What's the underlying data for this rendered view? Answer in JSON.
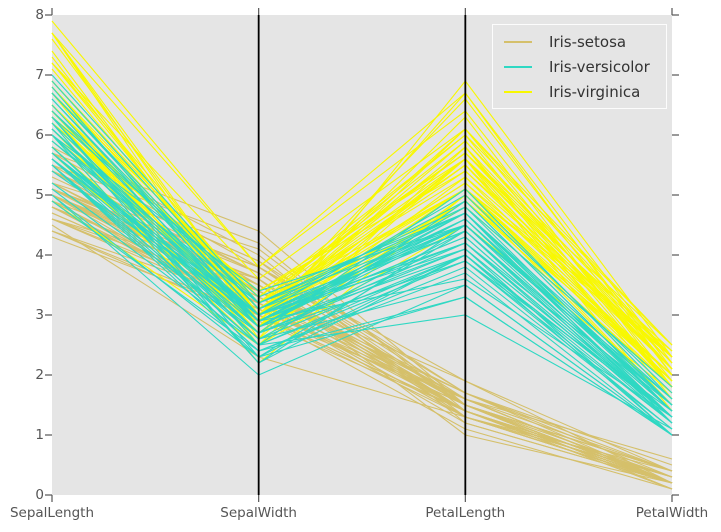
{
  "chart_data": {
    "type": "line",
    "subtype": "parallel-coordinates",
    "title": "",
    "dataset": "Iris",
    "categories": [
      "SepalLength",
      "SepalWidth",
      "PetalLength",
      "PetalWidth"
    ],
    "ylim": [
      0,
      8
    ],
    "yticks": [
      "0",
      "1",
      "2",
      "3",
      "4",
      "5",
      "6",
      "7",
      "8"
    ],
    "grid": false,
    "legend_position": "upper right",
    "axvlines_visible_at": [
      "SepalWidth",
      "PetalLength"
    ],
    "draw_order": [
      "Iris-setosa",
      "Iris-virginica",
      "Iris-versicolor"
    ],
    "colors": {
      "figure_background": "#ffffff",
      "plot_background": "#e5e5e5",
      "axis_vline": "#000000",
      "tick_mark": "#555555",
      "tick_text": "#555555",
      "legend_background": "#e5e5e5",
      "legend_border": "#fcfcfc",
      "legend_text": "#333333"
    },
    "series": [
      {
        "name": "Iris-setosa",
        "color": "#d5c06b",
        "rows": [
          [
            5.1,
            3.5,
            1.4,
            0.2
          ],
          [
            4.9,
            3.0,
            1.4,
            0.2
          ],
          [
            4.7,
            3.2,
            1.3,
            0.2
          ],
          [
            4.6,
            3.1,
            1.5,
            0.2
          ],
          [
            5.0,
            3.6,
            1.4,
            0.2
          ],
          [
            5.4,
            3.9,
            1.7,
            0.4
          ],
          [
            4.6,
            3.4,
            1.4,
            0.3
          ],
          [
            5.0,
            3.4,
            1.5,
            0.2
          ],
          [
            4.4,
            2.9,
            1.4,
            0.2
          ],
          [
            4.9,
            3.1,
            1.5,
            0.1
          ],
          [
            5.4,
            3.7,
            1.5,
            0.2
          ],
          [
            4.8,
            3.4,
            1.6,
            0.2
          ],
          [
            4.8,
            3.0,
            1.4,
            0.1
          ],
          [
            4.3,
            3.0,
            1.1,
            0.1
          ],
          [
            5.8,
            4.0,
            1.2,
            0.2
          ],
          [
            5.7,
            4.4,
            1.5,
            0.4
          ],
          [
            5.4,
            3.9,
            1.3,
            0.4
          ],
          [
            5.1,
            3.5,
            1.4,
            0.3
          ],
          [
            5.7,
            3.8,
            1.7,
            0.3
          ],
          [
            5.1,
            3.8,
            1.5,
            0.3
          ],
          [
            5.4,
            3.4,
            1.7,
            0.2
          ],
          [
            5.1,
            3.7,
            1.5,
            0.4
          ],
          [
            4.6,
            3.6,
            1.0,
            0.2
          ],
          [
            5.1,
            3.3,
            1.7,
            0.5
          ],
          [
            4.8,
            3.4,
            1.9,
            0.2
          ],
          [
            5.0,
            3.0,
            1.6,
            0.2
          ],
          [
            5.0,
            3.4,
            1.6,
            0.4
          ],
          [
            5.2,
            3.5,
            1.5,
            0.2
          ],
          [
            5.2,
            3.4,
            1.4,
            0.2
          ],
          [
            4.7,
            3.2,
            1.6,
            0.2
          ],
          [
            4.8,
            3.1,
            1.6,
            0.2
          ],
          [
            5.4,
            3.4,
            1.5,
            0.4
          ],
          [
            5.2,
            4.1,
            1.5,
            0.1
          ],
          [
            5.5,
            4.2,
            1.4,
            0.2
          ],
          [
            4.9,
            3.1,
            1.5,
            0.2
          ],
          [
            5.0,
            3.2,
            1.2,
            0.2
          ],
          [
            5.5,
            3.5,
            1.3,
            0.2
          ],
          [
            4.9,
            3.6,
            1.4,
            0.1
          ],
          [
            4.4,
            3.0,
            1.3,
            0.2
          ],
          [
            5.1,
            3.4,
            1.5,
            0.2
          ],
          [
            5.0,
            3.5,
            1.3,
            0.3
          ],
          [
            4.5,
            2.3,
            1.3,
            0.3
          ],
          [
            4.4,
            3.2,
            1.3,
            0.2
          ],
          [
            5.0,
            3.5,
            1.6,
            0.6
          ],
          [
            5.1,
            3.8,
            1.9,
            0.4
          ],
          [
            4.8,
            3.0,
            1.4,
            0.3
          ],
          [
            5.1,
            3.8,
            1.6,
            0.2
          ],
          [
            4.6,
            3.2,
            1.4,
            0.2
          ],
          [
            5.3,
            3.7,
            1.5,
            0.2
          ],
          [
            5.0,
            3.3,
            1.4,
            0.2
          ]
        ]
      },
      {
        "name": "Iris-versicolor",
        "color": "#2fd8c3",
        "rows": [
          [
            7.0,
            3.2,
            4.7,
            1.4
          ],
          [
            6.4,
            3.2,
            4.5,
            1.5
          ],
          [
            6.9,
            3.1,
            4.9,
            1.5
          ],
          [
            5.5,
            2.3,
            4.0,
            1.3
          ],
          [
            6.5,
            2.8,
            4.6,
            1.5
          ],
          [
            5.7,
            2.8,
            4.5,
            1.3
          ],
          [
            6.3,
            3.3,
            4.7,
            1.6
          ],
          [
            4.9,
            2.4,
            3.3,
            1.0
          ],
          [
            6.6,
            2.9,
            4.6,
            1.3
          ],
          [
            5.2,
            2.7,
            3.9,
            1.4
          ],
          [
            5.0,
            2.0,
            3.5,
            1.0
          ],
          [
            5.9,
            3.0,
            4.2,
            1.5
          ],
          [
            6.0,
            2.2,
            4.0,
            1.0
          ],
          [
            6.1,
            2.9,
            4.7,
            1.4
          ],
          [
            5.6,
            2.9,
            3.6,
            1.3
          ],
          [
            6.7,
            3.1,
            4.4,
            1.4
          ],
          [
            5.6,
            3.0,
            4.5,
            1.5
          ],
          [
            5.8,
            2.7,
            4.1,
            1.0
          ],
          [
            6.2,
            2.2,
            4.5,
            1.5
          ],
          [
            5.6,
            2.5,
            3.9,
            1.1
          ],
          [
            5.9,
            3.2,
            4.8,
            1.8
          ],
          [
            6.1,
            2.8,
            4.0,
            1.3
          ],
          [
            6.3,
            2.5,
            4.9,
            1.5
          ],
          [
            6.1,
            2.8,
            4.7,
            1.2
          ],
          [
            6.4,
            2.9,
            4.3,
            1.3
          ],
          [
            6.6,
            3.0,
            4.4,
            1.4
          ],
          [
            6.8,
            2.8,
            4.8,
            1.4
          ],
          [
            6.7,
            3.0,
            5.0,
            1.7
          ],
          [
            6.0,
            2.9,
            4.5,
            1.5
          ],
          [
            5.7,
            2.6,
            3.5,
            1.0
          ],
          [
            5.5,
            2.4,
            3.8,
            1.1
          ],
          [
            5.5,
            2.4,
            3.7,
            1.0
          ],
          [
            5.8,
            2.7,
            3.9,
            1.2
          ],
          [
            6.0,
            2.7,
            5.1,
            1.6
          ],
          [
            5.4,
            3.0,
            4.5,
            1.5
          ],
          [
            6.0,
            3.4,
            4.5,
            1.6
          ],
          [
            6.7,
            3.1,
            4.7,
            1.5
          ],
          [
            6.3,
            2.3,
            4.4,
            1.3
          ],
          [
            5.6,
            3.0,
            4.1,
            1.3
          ],
          [
            5.5,
            2.5,
            4.0,
            1.3
          ],
          [
            5.5,
            2.6,
            4.4,
            1.2
          ],
          [
            6.1,
            3.0,
            4.6,
            1.4
          ],
          [
            5.8,
            2.6,
            4.0,
            1.2
          ],
          [
            5.0,
            2.3,
            3.3,
            1.0
          ],
          [
            5.6,
            2.7,
            4.2,
            1.3
          ],
          [
            5.7,
            3.0,
            4.2,
            1.2
          ],
          [
            5.7,
            2.9,
            4.2,
            1.3
          ],
          [
            6.2,
            2.9,
            4.3,
            1.3
          ],
          [
            5.1,
            2.5,
            3.0,
            1.1
          ],
          [
            5.7,
            2.8,
            4.1,
            1.3
          ]
        ]
      },
      {
        "name": "Iris-virginica",
        "color": "#f8f800",
        "rows": [
          [
            6.3,
            3.3,
            6.0,
            2.5
          ],
          [
            5.8,
            2.7,
            5.1,
            1.9
          ],
          [
            7.1,
            3.0,
            5.9,
            2.1
          ],
          [
            6.3,
            2.9,
            5.6,
            1.8
          ],
          [
            6.5,
            3.0,
            5.8,
            2.2
          ],
          [
            7.6,
            3.0,
            6.6,
            2.1
          ],
          [
            4.9,
            2.5,
            4.5,
            1.7
          ],
          [
            7.3,
            2.9,
            6.3,
            1.8
          ],
          [
            6.7,
            2.5,
            5.8,
            1.8
          ],
          [
            7.2,
            3.6,
            6.1,
            2.5
          ],
          [
            6.5,
            3.2,
            5.1,
            2.0
          ],
          [
            6.4,
            2.7,
            5.3,
            1.9
          ],
          [
            6.8,
            3.0,
            5.5,
            2.1
          ],
          [
            5.7,
            2.5,
            5.0,
            2.0
          ],
          [
            5.8,
            2.8,
            5.1,
            2.4
          ],
          [
            6.4,
            3.2,
            5.3,
            2.3
          ],
          [
            6.5,
            3.0,
            5.5,
            1.8
          ],
          [
            7.7,
            3.8,
            6.7,
            2.2
          ],
          [
            7.7,
            2.6,
            6.9,
            2.3
          ],
          [
            6.0,
            2.2,
            5.0,
            1.5
          ],
          [
            6.9,
            3.2,
            5.7,
            2.3
          ],
          [
            5.6,
            2.8,
            4.9,
            2.0
          ],
          [
            7.7,
            2.8,
            6.7,
            2.0
          ],
          [
            6.3,
            2.7,
            4.9,
            1.8
          ],
          [
            6.7,
            3.3,
            5.7,
            2.1
          ],
          [
            7.2,
            3.2,
            6.0,
            1.8
          ],
          [
            6.2,
            2.8,
            4.8,
            1.8
          ],
          [
            6.1,
            3.0,
            4.9,
            1.8
          ],
          [
            6.4,
            2.8,
            5.6,
            2.1
          ],
          [
            7.2,
            3.0,
            5.8,
            1.6
          ],
          [
            7.4,
            2.8,
            6.1,
            1.9
          ],
          [
            7.9,
            3.8,
            6.4,
            2.0
          ],
          [
            6.4,
            2.8,
            5.6,
            2.2
          ],
          [
            6.3,
            2.8,
            5.1,
            1.5
          ],
          [
            6.1,
            2.6,
            5.6,
            1.4
          ],
          [
            7.7,
            3.0,
            6.1,
            2.3
          ],
          [
            6.3,
            3.4,
            5.6,
            2.4
          ],
          [
            6.4,
            3.1,
            5.5,
            1.8
          ],
          [
            6.0,
            3.0,
            4.8,
            1.8
          ],
          [
            6.9,
            3.1,
            5.4,
            2.1
          ],
          [
            6.7,
            3.1,
            5.6,
            2.4
          ],
          [
            6.9,
            3.1,
            5.1,
            2.3
          ],
          [
            5.8,
            2.7,
            5.1,
            1.9
          ],
          [
            6.8,
            3.2,
            5.9,
            2.3
          ],
          [
            6.7,
            3.3,
            5.7,
            2.5
          ],
          [
            6.7,
            3.0,
            5.2,
            2.3
          ],
          [
            6.3,
            2.5,
            5.0,
            1.9
          ],
          [
            6.5,
            3.0,
            5.2,
            2.0
          ],
          [
            6.2,
            3.4,
            5.4,
            2.3
          ],
          [
            5.9,
            3.0,
            5.1,
            1.8
          ]
        ]
      }
    ]
  }
}
